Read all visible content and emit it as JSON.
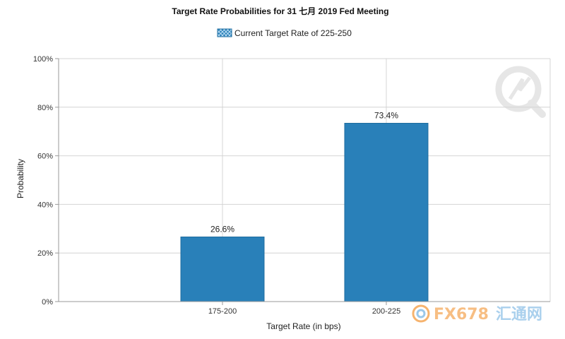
{
  "colors": {
    "bar": "#2980b9",
    "bar_edge": "#1f6d9f",
    "logo_orange": "#f28b2e",
    "logo_blue": "#2f8fd6",
    "watermark": "#e8e8e8"
  },
  "chart_data": {
    "type": "bar",
    "title": "Target Rate Probabilities for 31 七月 2019 Fed Meeting",
    "legend": [
      "Current Target Rate of 225-250"
    ],
    "legend_position": "top-center",
    "xlabel": "Target Rate (in bps)",
    "ylabel": "Probability",
    "categories": [
      "175-200",
      "200-225"
    ],
    "values": [
      26.6,
      73.4
    ],
    "data_labels": [
      "26.6%",
      "73.4%"
    ],
    "ylim": [
      0,
      100
    ],
    "yticks": [
      "0%",
      "20%",
      "40%",
      "60%",
      "80%",
      "100%"
    ],
    "grid": true
  },
  "watermark": {
    "brand": "FX678",
    "brand_cn": "汇通网"
  }
}
